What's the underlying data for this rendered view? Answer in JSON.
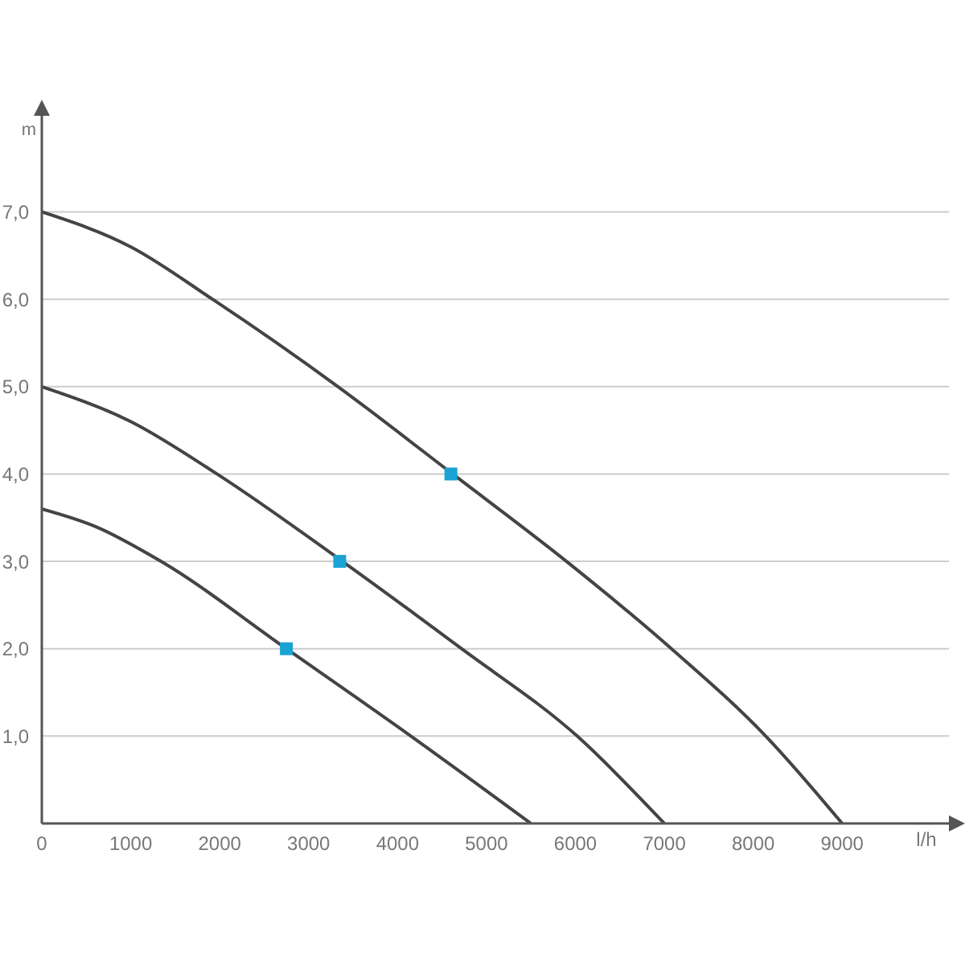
{
  "chart_data": {
    "type": "line",
    "xlabel": "l/h",
    "ylabel": "m",
    "xlim": [
      0,
      10200
    ],
    "ylim": [
      0,
      8.1
    ],
    "xticks": [
      0,
      1000,
      2000,
      3000,
      4000,
      5000,
      6000,
      7000,
      8000,
      9000
    ],
    "yticks": [
      {
        "value": 1,
        "label": "1,0"
      },
      {
        "value": 2,
        "label": "2,0"
      },
      {
        "value": 3,
        "label": "3,0"
      },
      {
        "value": 4,
        "label": "4,0"
      },
      {
        "value": 5,
        "label": "5,0"
      },
      {
        "value": 6,
        "label": "6,0"
      },
      {
        "value": 7,
        "label": "7,0"
      }
    ],
    "grid": "y",
    "marker": "none",
    "line_style": "solid",
    "series": [
      {
        "color": "#444444",
        "x": [
          0,
          1000,
          1920,
          3330,
          4620,
          5900,
          7080,
          8140,
          9000
        ],
        "values": [
          7.0,
          6.6,
          6.0,
          5.0,
          4.0,
          3.0,
          2.0,
          1.0,
          0
        ]
      },
      {
        "color": "#444444",
        "x": [
          0,
          1000,
          1970,
          3380,
          4720,
          6020,
          7000
        ],
        "values": [
          5.0,
          4.6,
          4.0,
          3.0,
          2.0,
          1.0,
          0
        ]
      },
      {
        "color": "#444444",
        "x": [
          0,
          600,
          1340,
          2750,
          4150,
          5500
        ],
        "values": [
          3.6,
          3.4,
          3.0,
          2.0,
          1.0,
          0
        ]
      },
      {
        "type": "scatter",
        "marker": "square",
        "color": "#1aa3d4",
        "x": [
          4600,
          3350,
          2750
        ],
        "values": [
          4.0,
          3.0,
          2.0
        ]
      }
    ]
  }
}
